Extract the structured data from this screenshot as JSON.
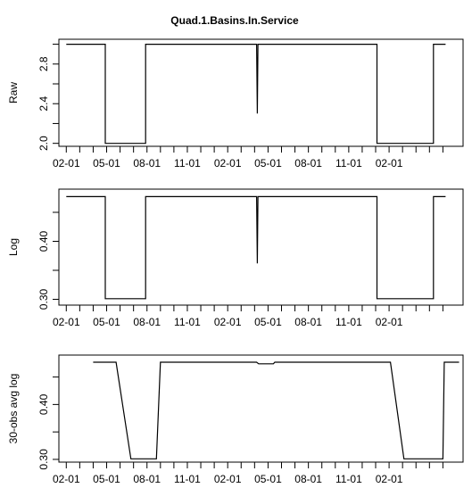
{
  "title": "Quad.1.Basins.In.Service",
  "x_tick_labels": [
    "02-01",
    "05-01",
    "08-01",
    "11-01",
    "02-01",
    "05-01",
    "08-01",
    "11-01",
    "02-01"
  ],
  "chart_data": [
    {
      "type": "line",
      "ylabel": "Raw",
      "ylim": [
        1.97,
        3.05
      ],
      "y_ticks": [
        2.0,
        2.4,
        2.8
      ],
      "y_tick_labels": [
        "2.0",
        "2.4",
        "2.8"
      ],
      "series": [
        {
          "x": [
            0,
            2.9,
            2.9,
            5.9,
            5.9,
            14.15,
            14.2,
            14.25,
            14.25,
            23.1,
            23.1,
            27.3,
            27.3,
            28.2
          ],
          "y": [
            3.0,
            3.0,
            2.0,
            2.0,
            3.0,
            3.0,
            2.3,
            3.0,
            3.0,
            3.0,
            2.0,
            2.0,
            3.0,
            3.0
          ]
        }
      ]
    },
    {
      "type": "line",
      "ylabel": "Log",
      "ylim": [
        0.29,
        0.49
      ],
      "y_ticks": [
        0.3,
        0.4
      ],
      "y_tick_labels": [
        "0.30",
        "0.40"
      ],
      "series": [
        {
          "x": [
            0,
            2.9,
            2.9,
            5.9,
            5.9,
            14.15,
            14.2,
            14.25,
            14.25,
            23.1,
            23.1,
            27.3,
            27.3,
            28.2
          ],
          "y": [
            0.477,
            0.477,
            0.301,
            0.301,
            0.477,
            0.477,
            0.362,
            0.477,
            0.477,
            0.477,
            0.301,
            0.301,
            0.477,
            0.477
          ]
        }
      ]
    },
    {
      "type": "line",
      "ylabel": "30-obs avg log",
      "ylim": [
        0.295,
        0.49
      ],
      "y_ticks": [
        0.3,
        0.4
      ],
      "y_tick_labels": [
        "0.30",
        "0.40"
      ],
      "series": [
        {
          "x": [
            2.0,
            3.7,
            4.8,
            6.7,
            7.0,
            14.15,
            14.3,
            15.4,
            15.5,
            24.1,
            25.1,
            28.0,
            28.1,
            29.2
          ],
          "y": [
            0.477,
            0.477,
            0.301,
            0.301,
            0.477,
            0.477,
            0.474,
            0.474,
            0.477,
            0.477,
            0.301,
            0.301,
            0.477,
            0.477
          ]
        }
      ]
    }
  ]
}
